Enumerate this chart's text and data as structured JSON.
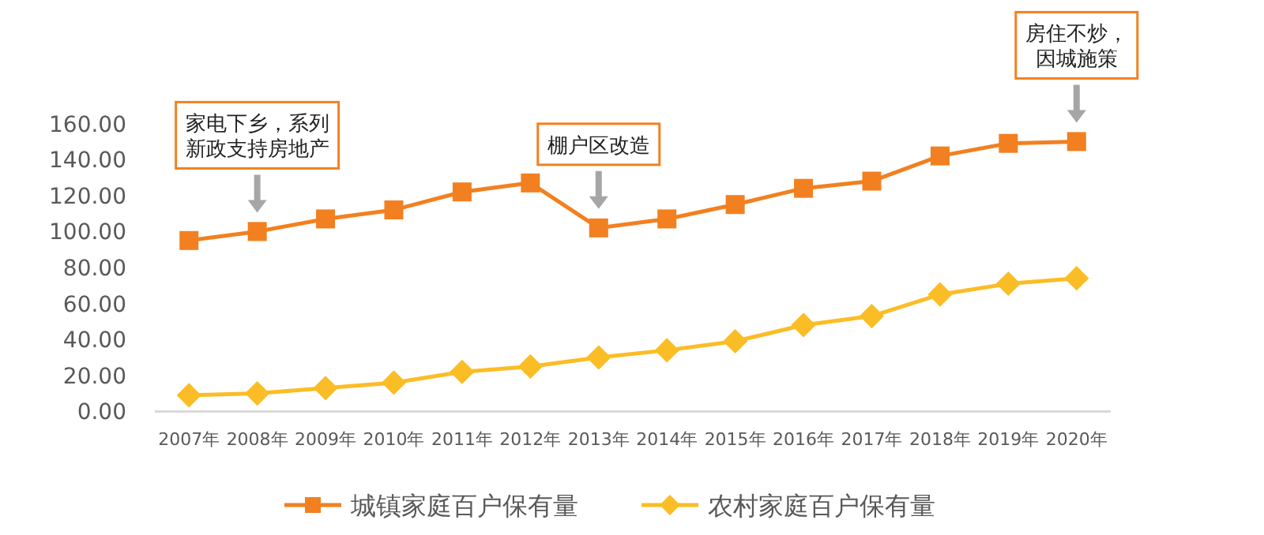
{
  "chart_data": {
    "type": "line",
    "categories": [
      "2007年",
      "2008年",
      "2009年",
      "2010年",
      "2011年",
      "2012年",
      "2013年",
      "2014年",
      "2015年",
      "2016年",
      "2017年",
      "2018年",
      "2019年",
      "2020年"
    ],
    "series": [
      {
        "name": "城镇家庭百户保有量",
        "color": "#f28020",
        "marker": "square",
        "values": [
          95,
          100,
          107,
          112,
          122,
          127,
          102,
          107,
          115,
          124,
          128,
          142,
          149,
          150
        ]
      },
      {
        "name": "农村家庭百户保有量",
        "color": "#fbbd25",
        "marker": "diamond",
        "values": [
          9,
          10,
          13,
          16,
          22,
          25,
          30,
          34,
          39,
          48,
          53,
          65,
          71,
          74
        ]
      }
    ],
    "ylim": [
      0,
      160
    ],
    "yticks": [
      {
        "value": 0,
        "label": "0.00"
      },
      {
        "value": 20,
        "label": "20.00"
      },
      {
        "value": 40,
        "label": "40.00"
      },
      {
        "value": 60,
        "label": "60.00"
      },
      {
        "value": 80,
        "label": "80.00"
      },
      {
        "value": 100,
        "label": "100.00"
      },
      {
        "value": 120,
        "label": "120.00"
      },
      {
        "value": 140,
        "label": "140.00"
      },
      {
        "value": 160,
        "label": "160.00"
      }
    ],
    "grid": false,
    "legend": "bottom",
    "annotations": [
      "家电下乡，系列新政支持房地产",
      "棚户区改造",
      "房住不炒，因城施策"
    ]
  }
}
